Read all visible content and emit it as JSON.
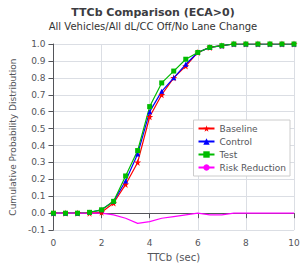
{
  "chart_data": {
    "type": "line",
    "title": "TTCb Comparison (ECA>0)",
    "subtitle": "All Vehicles/All dL/CC Off/No Lane Change",
    "xlabel": "TTCb (sec)",
    "ylabel": "Cumulative Probability Distribution",
    "x": [
      0.0,
      0.5,
      1.0,
      1.5,
      2.0,
      2.5,
      3.0,
      3.5,
      4.0,
      4.5,
      5.0,
      5.5,
      6.0,
      6.5,
      7.0,
      7.5,
      8.0,
      8.5,
      9.0,
      9.5,
      10.0
    ],
    "series": [
      {
        "name": "Baseline",
        "color": "#ff0000",
        "marker": "star",
        "values": [
          0.0,
          0.0,
          0.0,
          0.0,
          0.005,
          0.06,
          0.17,
          0.3,
          0.57,
          0.7,
          0.8,
          0.87,
          0.95,
          0.98,
          0.99,
          1.0,
          1.0,
          1.0,
          1.0,
          1.0,
          1.0
        ]
      },
      {
        "name": "Control",
        "color": "#0000ff",
        "marker": "triangle",
        "values": [
          0.0,
          0.0,
          0.0,
          0.005,
          0.02,
          0.07,
          0.19,
          0.35,
          0.6,
          0.72,
          0.8,
          0.88,
          0.95,
          0.98,
          0.99,
          1.0,
          1.0,
          1.0,
          1.0,
          1.0,
          1.0
        ]
      },
      {
        "name": "Test",
        "color": "#00bb00",
        "marker": "square",
        "values": [
          0.0,
          0.0,
          0.0,
          0.005,
          0.02,
          0.07,
          0.22,
          0.37,
          0.63,
          0.77,
          0.84,
          0.91,
          0.95,
          0.98,
          0.99,
          1.0,
          1.0,
          1.0,
          1.0,
          1.0,
          1.0
        ]
      },
      {
        "name": "Risk Reduction",
        "color": "#ff00ff",
        "values": [
          0.0,
          0.0,
          0.0,
          0.0,
          0.0,
          -0.01,
          -0.03,
          -0.06,
          -0.05,
          -0.03,
          -0.02,
          -0.01,
          0.0,
          -0.01,
          -0.01,
          0.0,
          0.0,
          0.0,
          0.0,
          0.0,
          0.0
        ]
      }
    ],
    "xlim": [
      0,
      10
    ],
    "ylim": [
      -0.1,
      1.0
    ],
    "xticks": [
      0,
      2,
      4,
      6,
      8,
      10
    ],
    "yticks": [
      -0.1,
      {
        "value": 0,
        "label": "0.0"
      },
      0.1,
      0.2,
      0.3,
      0.4,
      0.5,
      0.6,
      0.7,
      0.8,
      0.9,
      {
        "value": 1,
        "label": "1.0"
      }
    ],
    "grid": true,
    "legend": "right"
  }
}
